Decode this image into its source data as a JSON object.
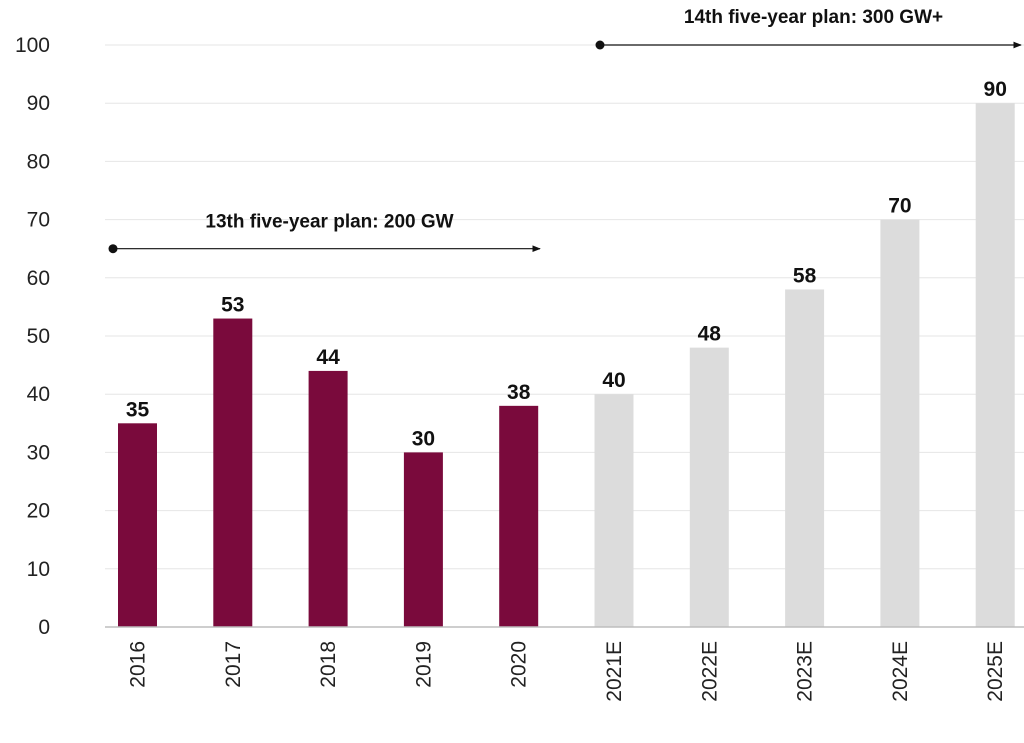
{
  "colors": {
    "actual": "#7a0a3c",
    "estimate": "#dcdcdc",
    "grid": "#e6e6e6",
    "axis": "#bdbdbd",
    "arrow": "#111111"
  },
  "chart_data": {
    "type": "bar",
    "categories": [
      "2016",
      "2017",
      "2018",
      "2019",
      "2020",
      "2021E",
      "2022E",
      "2023E",
      "2024E",
      "2025E"
    ],
    "values": [
      35,
      53,
      44,
      30,
      38,
      40,
      48,
      58,
      70,
      90
    ],
    "bar_kind": [
      "actual",
      "actual",
      "actual",
      "actual",
      "actual",
      "estimate",
      "estimate",
      "estimate",
      "estimate",
      "estimate"
    ],
    "title": "",
    "xlabel": "",
    "ylabel": "",
    "ylim": [
      0,
      100
    ],
    "yticks": [
      0,
      10,
      20,
      30,
      40,
      50,
      60,
      70,
      80,
      90,
      100
    ],
    "grid": true,
    "legend": "none",
    "annotations": [
      {
        "text": "13th five-year plan: 200 GW",
        "y": 65,
        "from_category": "2016",
        "to_category": "2020"
      },
      {
        "text": "14th five-year plan: 300 GW+",
        "y": 100,
        "from_category": "2021E",
        "to_category": "2025E"
      }
    ]
  }
}
